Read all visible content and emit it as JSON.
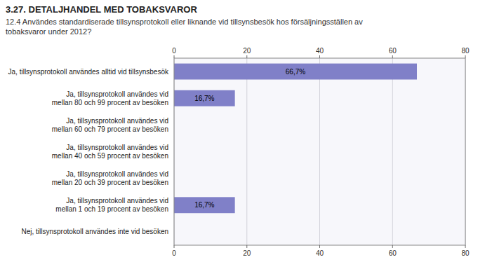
{
  "chart_data": {
    "type": "bar",
    "orientation": "horizontal",
    "title": "3.27. DETALJHANDEL MED TOBAKSVAROR",
    "subtitle": "12.4 Användes standardiserade tillsynsprotokoll eller liknande vid tillsynsbesök hos försäljningsställen av\ntobaksvaror under 2012?",
    "categories": [
      "Ja, tillsynsprotokoll användes alltid vid tillsynsbesök",
      "Ja, tillsynsprotokoll användes vid\nmellan 80 och 99 procent av besöken",
      "Ja, tillsynsprotokoll användes vid\nmellan 60 och 79 procent av besöken",
      "Ja, tillsynsprotokoll användes vid\nmellan 40 och 59 procent av besöken",
      "Ja, tillsynsprotokoll användes vid\nmellan 20 och 39 procent av besöken",
      "Ja, tillsynsprotokoll användes vid\nmellan 1 och 19 procent av besöken",
      "Nej, tillsynsprotokoll användes inte vid besöken"
    ],
    "values": [
      66.7,
      16.7,
      0,
      0,
      0,
      16.7,
      0
    ],
    "value_labels": [
      "66,7%",
      "16,7%",
      null,
      null,
      null,
      "16,7%",
      null
    ],
    "color": "#8080c8",
    "xlim": [
      0,
      80
    ],
    "xticks": [
      0,
      20,
      40,
      60,
      80
    ],
    "grid": true
  }
}
